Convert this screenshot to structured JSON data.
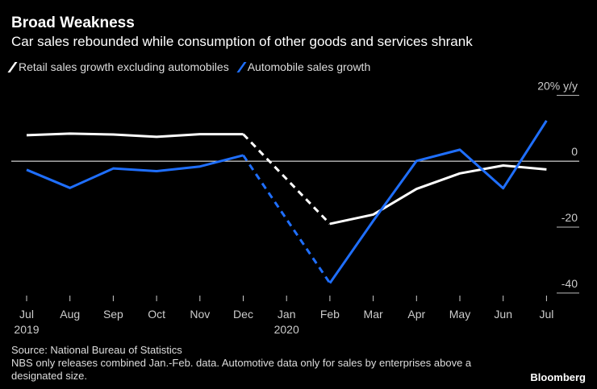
{
  "header": {
    "title": "Broad Weakness",
    "subtitle": "Car sales rebounded while consumption of other goods and services shrank"
  },
  "chart_data": {
    "type": "line",
    "categories": [
      "Jul",
      "Aug",
      "Sep",
      "Oct",
      "Nov",
      "Dec",
      "Jan",
      "Feb",
      "Mar",
      "Apr",
      "May",
      "Jun",
      "Jul"
    ],
    "year_labels": [
      {
        "index": 0,
        "label": "2019"
      },
      {
        "index": 6,
        "label": "2020"
      }
    ],
    "ylim": [
      -42,
      24
    ],
    "yticks": [
      20,
      0,
      -20,
      -40
    ],
    "ytick_labels": [
      "20% y/y",
      "0",
      "-20",
      "-40"
    ],
    "series": [
      {
        "name": "Retail sales growth excluding automobiles",
        "color": "#ffffff",
        "values": [
          7.9,
          8.4,
          8.1,
          7.4,
          8.2,
          8.2,
          null,
          -19.0,
          -16.2,
          -8.4,
          -3.7,
          -1.3,
          -2.5
        ],
        "gap_dashed": true
      },
      {
        "name": "Automobile sales growth",
        "color": "#1f6fff",
        "values": [
          -2.6,
          -8.1,
          -2.2,
          -3.0,
          -1.6,
          1.8,
          null,
          -37.0,
          -18.1,
          0.1,
          3.5,
          -8.2,
          12.3
        ],
        "gap_dashed": true
      }
    ]
  },
  "footer": {
    "source": "Source: National Bureau of Statistics",
    "note": "NBS only releases combined Jan.-Feb. data. Automotive data only for sales by enterprises above a designated size."
  },
  "brand": "Bloomberg"
}
